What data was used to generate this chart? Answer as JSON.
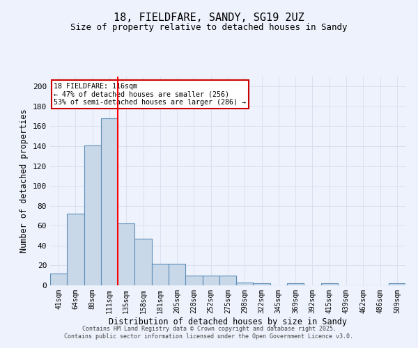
{
  "title_line1": "18, FIELDFARE, SANDY, SG19 2UZ",
  "title_line2": "Size of property relative to detached houses in Sandy",
  "xlabel": "Distribution of detached houses by size in Sandy",
  "ylabel": "Number of detached properties",
  "categories": [
    "41sqm",
    "64sqm",
    "88sqm",
    "111sqm",
    "135sqm",
    "158sqm",
    "181sqm",
    "205sqm",
    "228sqm",
    "252sqm",
    "275sqm",
    "298sqm",
    "322sqm",
    "345sqm",
    "369sqm",
    "392sqm",
    "415sqm",
    "439sqm",
    "462sqm",
    "486sqm",
    "509sqm"
  ],
  "values": [
    12,
    72,
    141,
    168,
    62,
    47,
    22,
    22,
    10,
    10,
    10,
    3,
    2,
    0,
    2,
    0,
    2,
    0,
    0,
    0,
    2
  ],
  "bar_color": "#c8d8e8",
  "bar_edge_color": "#5b8db8",
  "grid_color": "#d8e0f0",
  "background_color": "#eef2fc",
  "red_line_x": 3.5,
  "annotation_text": "18 FIELDFARE: 116sqm\n← 47% of detached houses are smaller (256)\n53% of semi-detached houses are larger (286) →",
  "annotation_box_color": "#ffffff",
  "annotation_box_edge": "#cc0000",
  "ylim": [
    0,
    210
  ],
  "yticks": [
    0,
    20,
    40,
    60,
    80,
    100,
    120,
    140,
    160,
    180,
    200
  ],
  "footer": "Contains HM Land Registry data © Crown copyright and database right 2025.\nContains public sector information licensed under the Open Government Licence v3.0."
}
